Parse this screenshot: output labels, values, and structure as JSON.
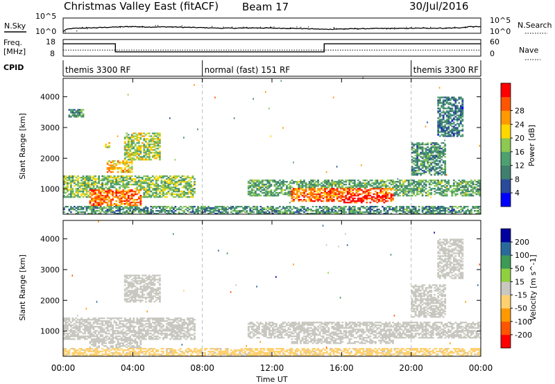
{
  "header": {
    "title": "Christmas Valley East (fitACF)",
    "beam": "Beam 17",
    "date": "30/Jul/2016"
  },
  "noise_panel": {
    "left_label": "N.Sky",
    "left_ticks": [
      "10^5",
      "10^0"
    ],
    "right_ticks": [
      "10^5",
      "10^0"
    ],
    "right_label": "N.Search"
  },
  "freq_panel": {
    "left_label": "Freq.",
    "left_unit": "[MHz]",
    "left_ticks": [
      "18",
      "8"
    ],
    "right_ticks": [
      "60",
      "0"
    ],
    "right_label": "Nave"
  },
  "cpid_panel": {
    "label": "CPID",
    "segments": [
      {
        "label": "themis 3300 RF",
        "start": 0,
        "end": 8
      },
      {
        "label": "normal (fast) 151 RF",
        "start": 8,
        "end": 20
      },
      {
        "label": "themis 3300 RF",
        "start": 20,
        "end": 24
      }
    ]
  },
  "x_axis": {
    "label": "Time UT",
    "ticks": [
      "00:00",
      "04:00",
      "08:00",
      "12:00",
      "16:00",
      "20:00",
      "00:00"
    ],
    "range_hours": [
      0,
      24
    ]
  },
  "rti_panels": [
    {
      "name": "power",
      "ylabel": "Slant Range [km]",
      "cbar_label": "Power [dB]"
    },
    {
      "name": "velocity",
      "ylabel": "Slant Range [km]",
      "cbar_label": "Velocity [m s^-1]"
    }
  ],
  "chart_data": [
    {
      "type": "line",
      "title": "",
      "xlabel": "Time UT",
      "ylabel": "N.Sky",
      "yscale": "log",
      "ylim": [
        1,
        100000
      ],
      "x": [
        0,
        0.5,
        1,
        2,
        3,
        4,
        5,
        6,
        7,
        8,
        9,
        10,
        11,
        12,
        13,
        14,
        15,
        16,
        17,
        18,
        19,
        20,
        21,
        22,
        23,
        23.5,
        24
      ],
      "series": [
        {
          "name": "N.Sky",
          "values": [
            2,
            30,
            40,
            60,
            100,
            150,
            100,
            120,
            80,
            60,
            40,
            40,
            50,
            40,
            35,
            25,
            15,
            20,
            25,
            30,
            30,
            35,
            40,
            40,
            60,
            150,
            120
          ]
        }
      ]
    },
    {
      "type": "line",
      "title": "",
      "xlabel": "Time UT",
      "ylabel": "Freq. [MHz]",
      "ylim": [
        8,
        18
      ],
      "x": [
        0,
        3,
        3,
        15,
        15,
        24
      ],
      "series": [
        {
          "name": "Freq.",
          "values": [
            16,
            16,
            10.5,
            10.5,
            16,
            16
          ]
        }
      ],
      "nave": {
        "ylim": [
          0,
          60
        ],
        "x": [
          0,
          24
        ],
        "values": [
          22,
          22
        ]
      }
    },
    {
      "type": "heatmap",
      "title": "",
      "xlabel": "Time UT",
      "ylabel": "Slant Range [km]",
      "xlim": [
        0,
        24
      ],
      "ylim": [
        180,
        4600
      ],
      "yticks": [
        1000,
        2000,
        3000,
        4000
      ],
      "colorbar": {
        "label": "Power [dB]",
        "ticks": [
          4,
          8,
          12,
          16,
          20,
          24,
          28
        ],
        "range": [
          0,
          30
        ],
        "colors": [
          "#0000ff",
          "#2a4a9a",
          "#3f7f6e",
          "#4ea070",
          "#8dc850",
          "#ffd700",
          "#ff9900",
          "#ff5500",
          "#ff0000"
        ]
      },
      "echo_regions": [
        {
          "t0": 0,
          "t1": 7.5,
          "r0": 700,
          "r1": 1400,
          "level": 14
        },
        {
          "t0": 1.5,
          "t1": 4.5,
          "r0": 450,
          "r1": 950,
          "level": 24
        },
        {
          "t0": 2.5,
          "t1": 4,
          "r0": 1500,
          "r1": 1900,
          "level": 20
        },
        {
          "t0": 3.5,
          "t1": 5.5,
          "r0": 1900,
          "r1": 2800,
          "level": 16
        },
        {
          "t0": 2.4,
          "t1": 2.7,
          "r0": 2300,
          "r1": 2500,
          "level": 18
        },
        {
          "t0": 0,
          "t1": 24,
          "r0": 180,
          "r1": 450,
          "level": 10
        },
        {
          "t0": 10.5,
          "t1": 24,
          "r0": 750,
          "r1": 1300,
          "level": 12
        },
        {
          "t0": 13,
          "t1": 19,
          "r0": 550,
          "r1": 1000,
          "level": 24
        },
        {
          "t0": 16,
          "t1": 18.5,
          "r0": 500,
          "r1": 800,
          "level": 28
        },
        {
          "t0": 20,
          "t1": 22,
          "r0": 1400,
          "r1": 2500,
          "level": 10
        },
        {
          "t0": 21.5,
          "t1": 23,
          "r0": 2700,
          "r1": 4000,
          "level": 8
        },
        {
          "t0": 0.3,
          "t1": 1.2,
          "r0": 3300,
          "r1": 3600,
          "level": 10
        }
      ]
    },
    {
      "type": "heatmap",
      "title": "",
      "xlabel": "Time UT",
      "ylabel": "Slant Range [km]",
      "xlim": [
        0,
        24
      ],
      "ylim": [
        180,
        4600
      ],
      "yticks": [
        1000,
        2000,
        3000,
        4000
      ],
      "colorbar": {
        "label": "Velocity [m s^-1]",
        "ticks": [
          200,
          100,
          50,
          15,
          -15,
          -50,
          -100,
          -200
        ],
        "range": [
          -250,
          250
        ],
        "colors": [
          "#0000a0",
          "#2a6a9a",
          "#3c9a55",
          "#8fd040",
          "#c8c8c0",
          "#ffd070",
          "#ff9900",
          "#ff5500",
          "#ff0000"
        ]
      },
      "echo_regions": [
        {
          "t0": 0,
          "t1": 7.5,
          "r0": 700,
          "r1": 1400,
          "level": 0
        },
        {
          "t0": 1.5,
          "t1": 4.5,
          "r0": 450,
          "r1": 950,
          "level": 0
        },
        {
          "t0": 3.5,
          "t1": 5.5,
          "r0": 1900,
          "r1": 2800,
          "level": 0
        },
        {
          "t0": 0,
          "t1": 24,
          "r0": 180,
          "r1": 450,
          "level": -40
        },
        {
          "t0": 10.5,
          "t1": 24,
          "r0": 750,
          "r1": 1300,
          "level": 0
        },
        {
          "t0": 13,
          "t1": 19,
          "r0": 550,
          "r1": 1000,
          "level": 0
        },
        {
          "t0": 20,
          "t1": 22,
          "r0": 1400,
          "r1": 2500,
          "level": 0
        },
        {
          "t0": 21.5,
          "t1": 23,
          "r0": 2700,
          "r1": 4000,
          "level": 0
        }
      ]
    }
  ]
}
